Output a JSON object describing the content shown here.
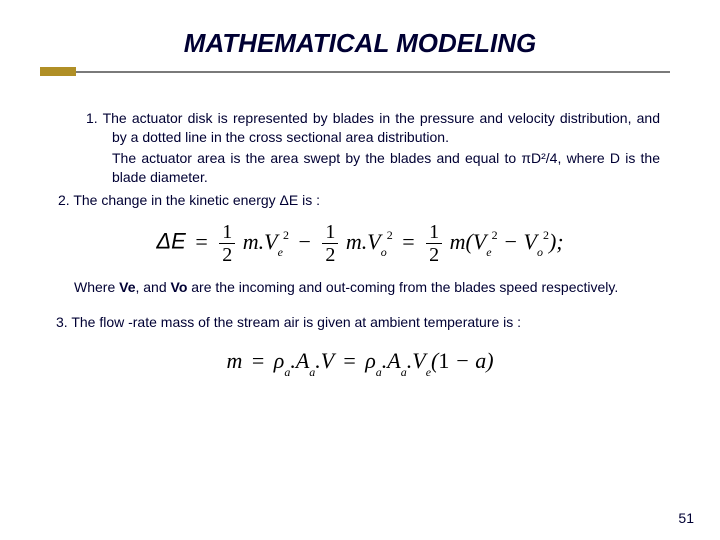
{
  "title": "MATHEMATICAL MODELING",
  "item1_a": "1. The actuator disk is represented by blades in the pressure and velocity distribution, and by a dotted line in the cross sectional area distribution.",
  "item1_b": "The actuator area is the area swept by the blades and equal to πD²/4, where D is the blade diameter.",
  "item2": "2. The change in the kinetic energy  ΔE is :",
  "where_pre": "Where ",
  "where_ve": "Ve",
  "where_mid1": ", and ",
  "where_vo": "Vo",
  "where_post": " are the incoming and out-coming from the blades speed respectively.",
  "item3": "3.  The flow -rate mass of the stream air is given at ambient temperature is :",
  "pagenum": "51",
  "eq1": {
    "lhs": "ΔE",
    "half_n": "1",
    "half_d": "2",
    "m": "m",
    "V": "V",
    "e": "e",
    "o": "o",
    "sq": "2",
    "open": "(",
    "close": ");"
  },
  "eq2": {
    "m": "m",
    "rho": "ρ",
    "a": "a",
    "Aa": "A",
    "asub": "a",
    "V": "V",
    "Ve": "V",
    "e": "e",
    "one": "1",
    "minus": "−",
    "avar": "a",
    "open": "(",
    "close": ")"
  },
  "colors": {
    "text": "#000033",
    "rule_accent": "#b08f26",
    "rule_line": "#7a7a7a",
    "bg": "#ffffff"
  }
}
